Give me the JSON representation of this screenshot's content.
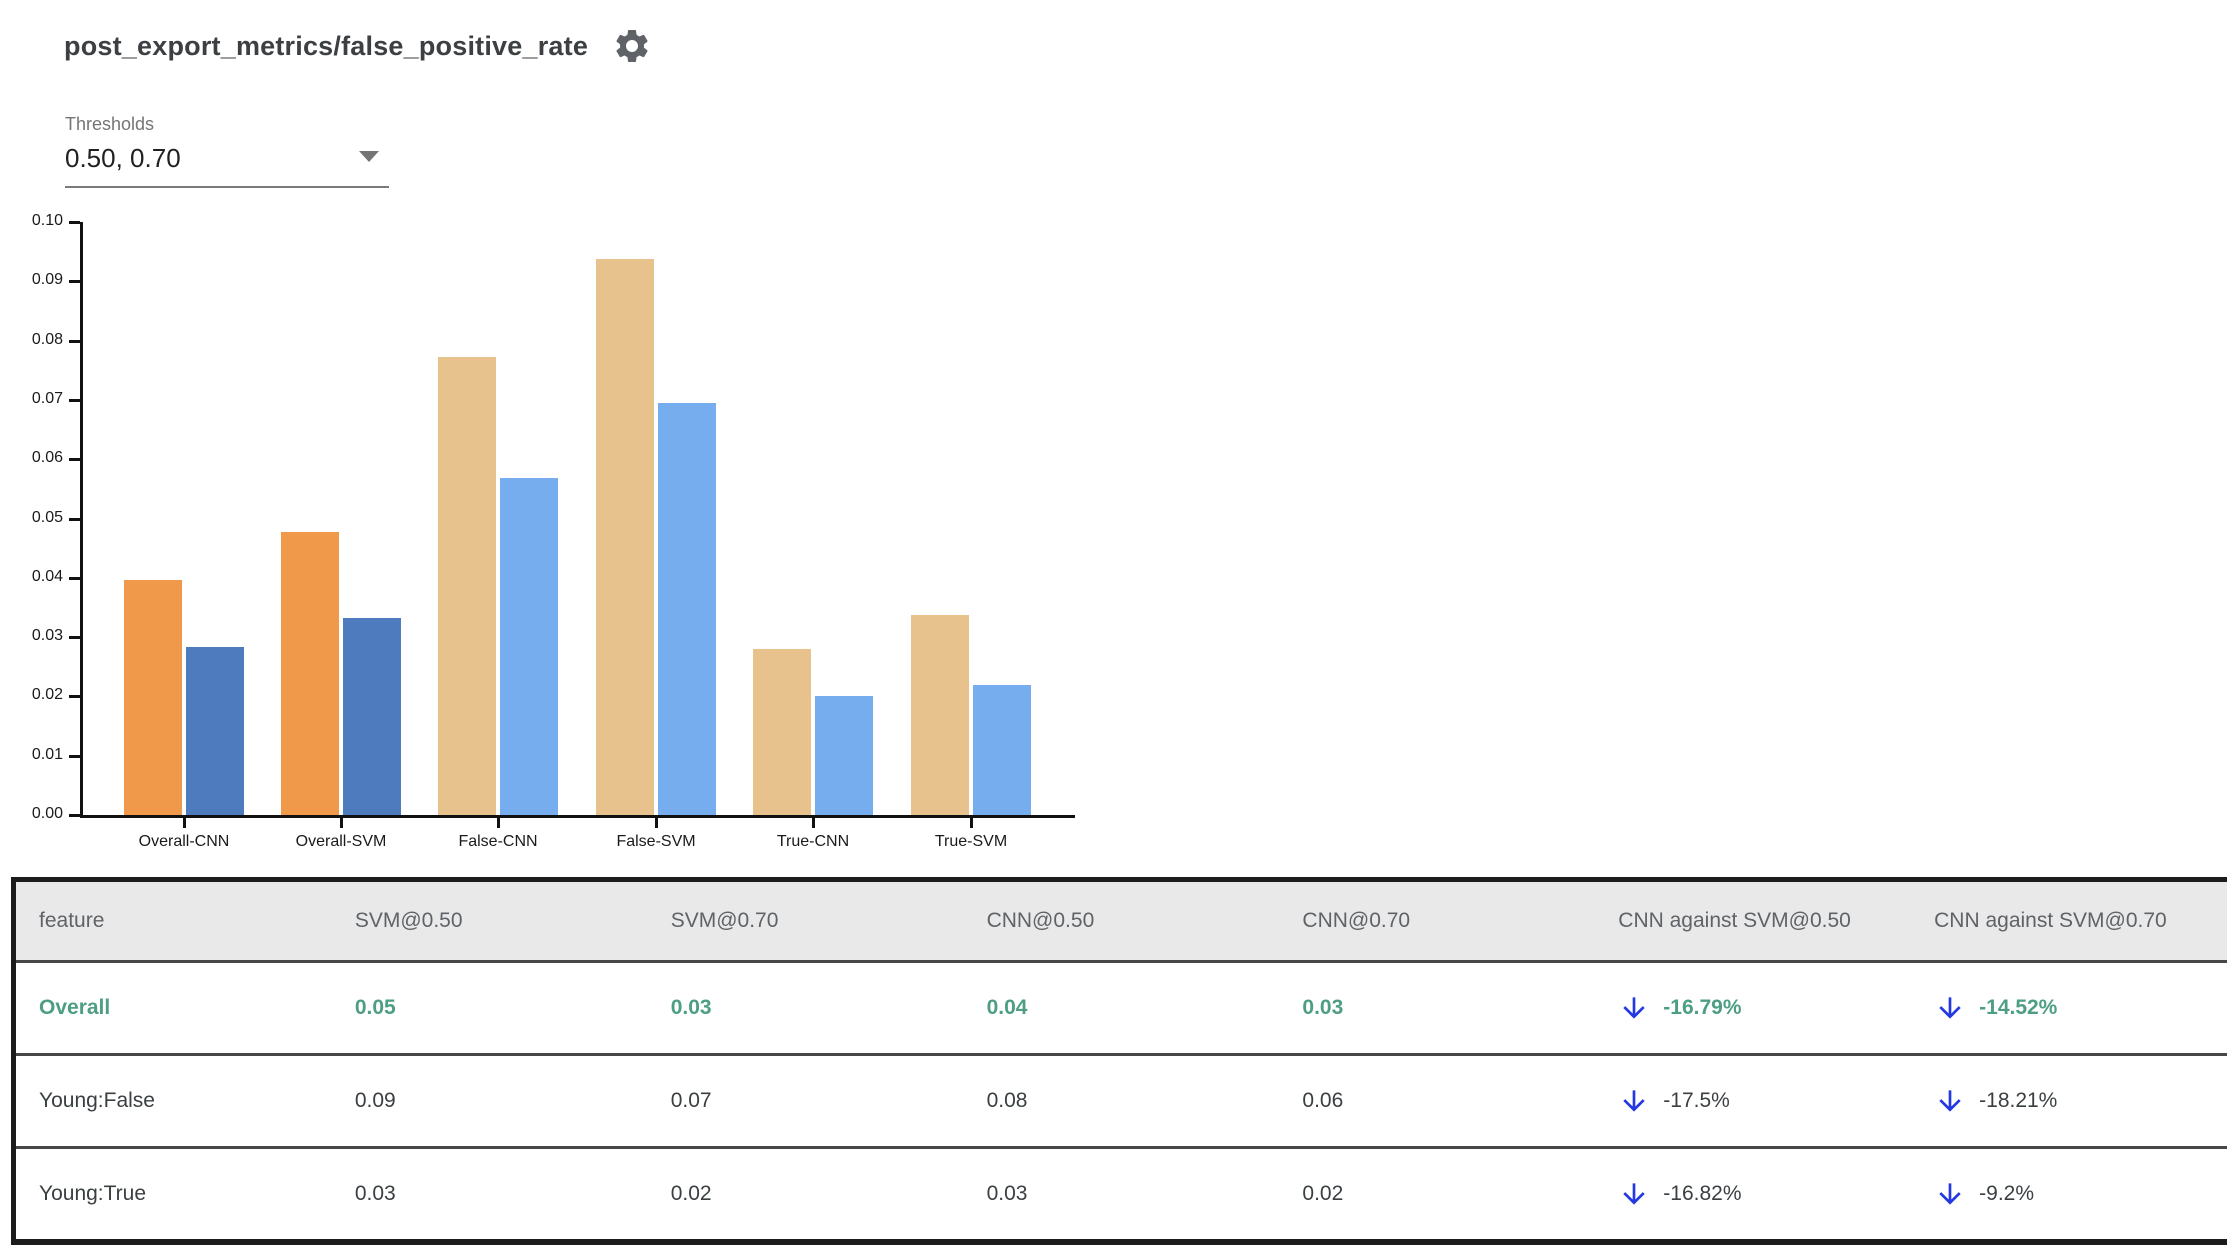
{
  "page": {
    "title": "post_export_metrics/false_positive_rate"
  },
  "thresholds": {
    "label": "Thresholds",
    "value": "0.50, 0.70"
  },
  "chart_data": {
    "type": "bar",
    "title": "post_export_metrics/false_positive_rate",
    "categories": [
      "Overall-CNN",
      "Overall-SVM",
      "False-CNN",
      "False-SVM",
      "True-CNN",
      "True-SVM"
    ],
    "series": [
      {
        "name": "threshold 0.50",
        "values": [
          0.0397,
          0.0477,
          0.0773,
          0.0937,
          0.028,
          0.0337
        ],
        "colors": [
          "#F0994B",
          "#F0994B",
          "#E7C28D",
          "#E7C28D",
          "#E7C28D",
          "#E7C28D"
        ]
      },
      {
        "name": "threshold 0.70",
        "values": [
          0.0284,
          0.0332,
          0.0568,
          0.0695,
          0.02,
          0.022
        ],
        "colors": [
          "#4D7BBD",
          "#4D7BBD",
          "#75ADEF",
          "#75ADEF",
          "#75ADEF",
          "#75ADEF"
        ]
      }
    ],
    "xlabel": "",
    "ylabel": "",
    "ylim": [
      0,
      0.1
    ],
    "ytick_step": 0.01,
    "ytick_labels": [
      "0.00",
      "0.01",
      "0.02",
      "0.03",
      "0.04",
      "0.05",
      "0.06",
      "0.07",
      "0.08",
      "0.09",
      "0.10"
    ],
    "grid": false,
    "legend_position": "none"
  },
  "table": {
    "columns": [
      "feature",
      "SVM@0.50",
      "SVM@0.70",
      "CNN@0.50",
      "CNN@0.70",
      "CNN against SVM@0.50",
      "CNN against SVM@0.70"
    ],
    "rows": [
      {
        "feature": "Overall",
        "values": [
          "0.05",
          "0.03",
          "0.04",
          "0.03"
        ],
        "comparisons": [
          {
            "direction": "down",
            "text": "-16.79%"
          },
          {
            "direction": "down",
            "text": "-14.52%"
          }
        ],
        "highlighted": true
      },
      {
        "feature": "Young:False",
        "values": [
          "0.09",
          "0.07",
          "0.08",
          "0.06"
        ],
        "comparisons": [
          {
            "direction": "down",
            "text": "-17.5%"
          },
          {
            "direction": "down",
            "text": "-18.21%"
          }
        ],
        "highlighted": false
      },
      {
        "feature": "Young:True",
        "values": [
          "0.03",
          "0.02",
          "0.03",
          "0.02"
        ],
        "comparisons": [
          {
            "direction": "down",
            "text": "-16.82%"
          },
          {
            "direction": "down",
            "text": "-9.2%"
          }
        ],
        "highlighted": false
      }
    ]
  },
  "colors": {
    "bar_orange": "#F0994B",
    "bar_dark_blue": "#4D7BBD",
    "bar_tan": "#E7C28D",
    "bar_light_blue": "#75ADEF",
    "highlight_text": "#4D9E82",
    "arrow_blue": "#2338E2",
    "header_bg": "#E9E9E9",
    "header_text": "#5F6368"
  },
  "icons": {
    "settings": "gear-icon",
    "dropdown": "chevron-down-icon",
    "decrease": "arrow-down-icon"
  }
}
